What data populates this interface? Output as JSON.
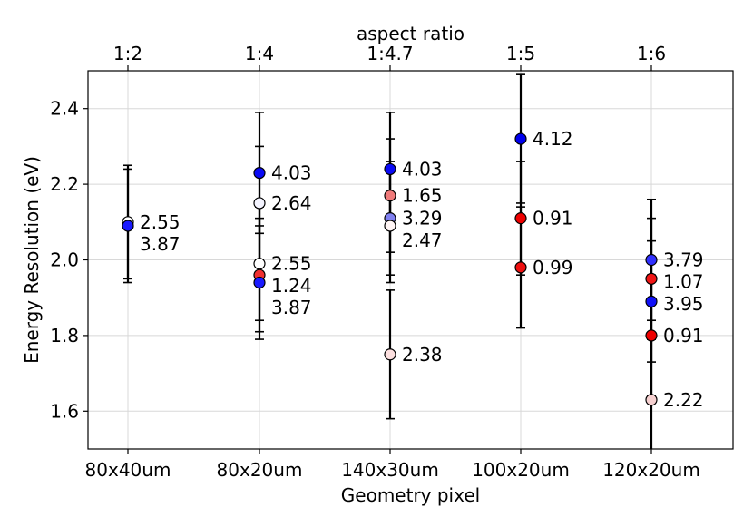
{
  "chart_data": {
    "type": "scatter",
    "title": "",
    "xlabel": "Geometry pixel",
    "ylabel": "Energy Resolution (eV)",
    "top_axis_label": "aspect ratio",
    "categories": [
      "80x40um",
      "80x20um",
      "140x30um",
      "100x20um",
      "120x20um"
    ],
    "top_categories": [
      "1:2",
      "1:4",
      "1:4.7",
      "1:5",
      "1:6"
    ],
    "ylim": [
      1.5,
      2.5
    ],
    "yticks": [
      1.6,
      1.8,
      2.0,
      2.2,
      2.4
    ],
    "grid": true,
    "points": [
      {
        "category": "80x40um",
        "y": 2.1,
        "err": 0.15,
        "label": "2.55",
        "color": "#ffffff"
      },
      {
        "category": "80x40um",
        "y": 2.09,
        "err": 0.15,
        "label": "3.87",
        "color": "#1a1aff"
      },
      {
        "category": "80x20um",
        "y": 2.23,
        "err": 0.16,
        "label": "4.03",
        "color": "#0a0af5"
      },
      {
        "category": "80x20um",
        "y": 2.15,
        "err": 0.15,
        "label": "2.64",
        "color": "#f4f4ff"
      },
      {
        "category": "80x20um",
        "y": 1.99,
        "err": 0.15,
        "label": "2.55",
        "color": "#ffffff"
      },
      {
        "category": "80x20um",
        "y": 1.96,
        "err": 0.15,
        "label": "1.24",
        "color": "#f03030"
      },
      {
        "category": "80x20um",
        "y": 1.94,
        "err": 0.15,
        "label": "3.87",
        "color": "#1a1aff"
      },
      {
        "category": "140x30um",
        "y": 2.24,
        "err": 0.15,
        "label": "4.03",
        "color": "#0a0af5"
      },
      {
        "category": "140x30um",
        "y": 2.17,
        "err": 0.15,
        "label": "1.65",
        "color": "#f07a7a"
      },
      {
        "category": "140x30um",
        "y": 2.11,
        "err": 0.15,
        "label": "3.29",
        "color": "#8080f0"
      },
      {
        "category": "140x30um",
        "y": 2.09,
        "err": 0.15,
        "label": "2.47",
        "color": "#fff5f5"
      },
      {
        "category": "140x30um",
        "y": 1.75,
        "err": 0.17,
        "label": "2.38",
        "color": "#fde0e0"
      },
      {
        "category": "100x20um",
        "y": 2.32,
        "err": 0.17,
        "label": "4.12",
        "color": "#0000ee"
      },
      {
        "category": "100x20um",
        "y": 2.11,
        "err": 0.15,
        "label": "0.91",
        "color": "#ee0000"
      },
      {
        "category": "100x20um",
        "y": 1.98,
        "err": 0.16,
        "label": "0.99",
        "color": "#ee1010"
      },
      {
        "category": "120x20um",
        "y": 2.0,
        "err": 0.16,
        "label": "3.79",
        "color": "#3030ff"
      },
      {
        "category": "120x20um",
        "y": 1.95,
        "err": 0.16,
        "label": "1.07",
        "color": "#f01515"
      },
      {
        "category": "120x20um",
        "y": 1.89,
        "err": 0.16,
        "label": "3.95",
        "color": "#1010f8"
      },
      {
        "category": "120x20um",
        "y": 1.8,
        "err": 0.16,
        "label": "0.91",
        "color": "#ee0000"
      },
      {
        "category": "120x20um",
        "y": 1.63,
        "err": 0.16,
        "label": "2.22",
        "color": "#f6d0d0"
      }
    ]
  }
}
